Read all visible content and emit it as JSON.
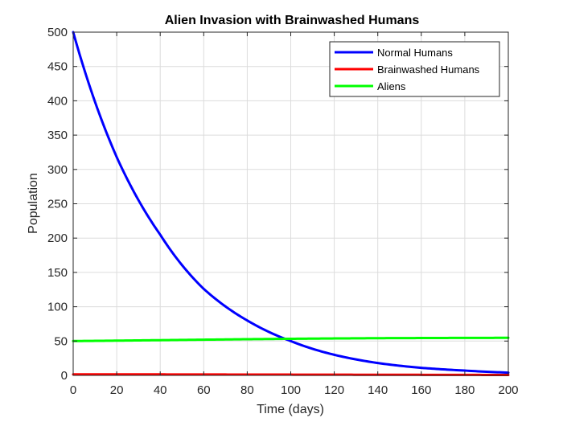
{
  "chart_data": {
    "type": "line",
    "title": "Alien Invasion with Brainwashed Humans",
    "xlabel": "Time (days)",
    "ylabel": "Population",
    "xlim": [
      0,
      200
    ],
    "ylim": [
      0,
      500
    ],
    "xticks": [
      0,
      20,
      40,
      60,
      80,
      100,
      120,
      140,
      160,
      180,
      200
    ],
    "yticks": [
      0,
      50,
      100,
      150,
      200,
      250,
      300,
      350,
      400,
      450,
      500
    ],
    "grid": true,
    "legend_position": "top-right",
    "x": [
      0,
      20,
      40,
      60,
      80,
      100,
      120,
      140,
      160,
      180,
      200
    ],
    "series": [
      {
        "name": "Normal Humans",
        "color": "#0000ff",
        "values": [
          500,
          318,
          205,
          126,
          80,
          50,
          30,
          18,
          11,
          7,
          4
        ]
      },
      {
        "name": "Brainwashed Humans",
        "color": "#ff0000",
        "values": [
          1.5,
          1.5,
          1.4,
          1.3,
          1.2,
          1.1,
          1.0,
          0.9,
          0.8,
          0.7,
          0.6
        ]
      },
      {
        "name": "Aliens",
        "color": "#00ff00",
        "values": [
          50,
          50.6,
          51.3,
          52,
          52.7,
          53.3,
          53.8,
          54.2,
          54.4,
          54.6,
          54.7
        ]
      }
    ]
  }
}
